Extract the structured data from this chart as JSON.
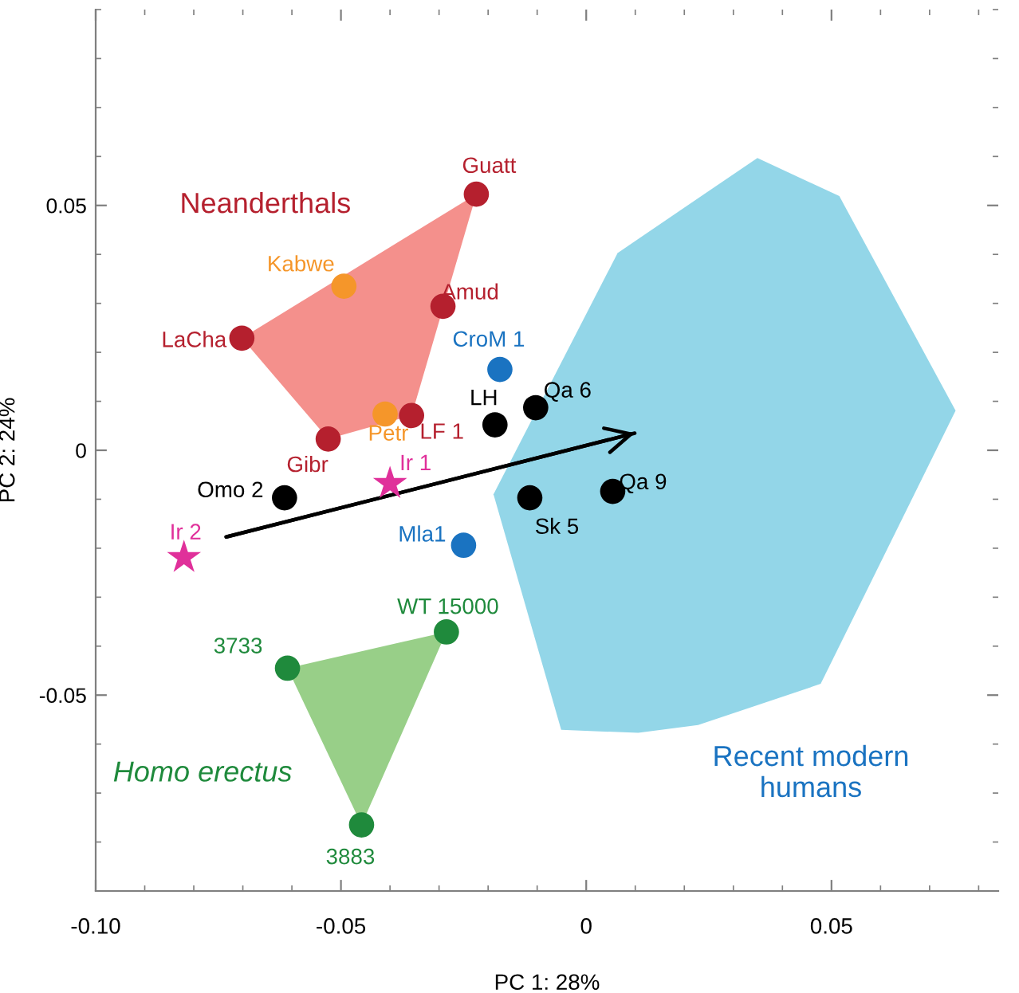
{
  "chart_data": {
    "type": "scatter",
    "xlabel": "PC 1: 28%",
    "ylabel": "PC 2: 24%",
    "xlim": [
      -0.1,
      0.084
    ],
    "ylim": [
      -0.09,
      0.09
    ],
    "xticks": [
      {
        "value": -0.1,
        "label": "-0.10"
      },
      {
        "value": -0.05,
        "label": "-0.05"
      },
      0,
      {
        "value": 0.05,
        "label": "0.05"
      }
    ],
    "yticks": [
      {
        "value": -0.05,
        "label": "-0.05"
      },
      0,
      {
        "value": 0.05,
        "label": "0.05"
      }
    ],
    "grid": false,
    "legend": false,
    "series": [
      {
        "type": "area",
        "color": "#f4908c",
        "x": [
          -0.0702,
          -0.0224,
          -0.0356,
          -0.0526
        ],
        "values": [
          0.0229,
          0.0523,
          0.0071,
          0.0023
        ]
      },
      {
        "type": "area",
        "color": "#98cf88",
        "x": [
          -0.0609,
          -0.0285,
          -0.0458
        ],
        "values": [
          -0.0445,
          -0.0371,
          -0.0765
        ]
      },
      {
        "type": "area",
        "color": "#93d6e8",
        "x": [
          0.0349,
          0.0516,
          0.0753,
          0.0478,
          0.0228,
          0.0106,
          -0.0051,
          -0.0189,
          0.0064
        ],
        "values": [
          0.0597,
          0.0519,
          0.0081,
          -0.0477,
          -0.0561,
          -0.0577,
          -0.0571,
          -0.009,
          0.0403
        ]
      },
      {
        "type": "line",
        "marker": "none",
        "color": "#000000",
        "x": [
          -0.0734,
          0.0099
        ],
        "values": [
          -0.0177,
          0.0035
        ]
      },
      {
        "marker": "circle",
        "color": "#b5202e",
        "x": [
          -0.0224,
          -0.0292,
          -0.0702,
          -0.0526,
          -0.0356
        ],
        "values": [
          0.0523,
          0.0294,
          0.0229,
          0.0023,
          0.0071
        ]
      },
      {
        "marker": "circle",
        "color": "#f5962a",
        "x": [
          -0.0494,
          -0.041
        ],
        "values": [
          0.0335,
          0.0074
        ]
      },
      {
        "marker": "circle",
        "color": "#1a73c1",
        "x": [
          -0.0176,
          -0.025
        ],
        "values": [
          0.0165,
          -0.0194
        ]
      },
      {
        "marker": "circle",
        "color": "#000000",
        "x": [
          -0.0186,
          -0.0103,
          -0.0615,
          -0.0115,
          0.0054
        ],
        "values": [
          0.0052,
          0.0087,
          -0.0097,
          -0.0097,
          -0.0084
        ]
      },
      {
        "marker": "star",
        "color": "#e0309a",
        "x": [
          -0.04,
          -0.082
        ],
        "values": [
          -0.0068,
          -0.0219
        ]
      },
      {
        "marker": "circle",
        "color": "#1f8a3c",
        "x": [
          -0.0285,
          -0.0609,
          -0.0458
        ],
        "values": [
          -0.0371,
          -0.0445,
          -0.0765
        ]
      }
    ],
    "annotations": [
      {
        "text": "Guatt",
        "x": -0.0224,
        "y": 0.0523
      },
      {
        "text": "Amud",
        "x": -0.0292,
        "y": 0.0294
      },
      {
        "text": "LaCha",
        "x": -0.0702,
        "y": 0.0229
      },
      {
        "text": "Gibr",
        "x": -0.0526,
        "y": 0.0023
      },
      {
        "text": "LF 1",
        "x": -0.0356,
        "y": 0.0071
      },
      {
        "text": "Kabwe",
        "x": -0.0494,
        "y": 0.0335
      },
      {
        "text": "Petr",
        "x": -0.041,
        "y": 0.0074
      },
      {
        "text": "CroM 1",
        "x": -0.0176,
        "y": 0.0165
      },
      {
        "text": "Mla1",
        "x": -0.025,
        "y": -0.0194
      },
      {
        "text": "LH",
        "x": -0.0186,
        "y": 0.0052
      },
      {
        "text": "Qa 6",
        "x": -0.0103,
        "y": 0.0087
      },
      {
        "text": "Omo 2",
        "x": -0.0615,
        "y": -0.0097
      },
      {
        "text": "Sk 5",
        "x": -0.0115,
        "y": -0.0097
      },
      {
        "text": "Qa 9",
        "x": 0.0054,
        "y": -0.0084
      },
      {
        "text": "Ir 1",
        "x": -0.04,
        "y": -0.0068
      },
      {
        "text": "Ir 2",
        "x": -0.082,
        "y": -0.0219
      },
      {
        "text": "WT 15000",
        "x": -0.0285,
        "y": -0.0371
      },
      {
        "text": "3733",
        "x": -0.0609,
        "y": -0.0445
      },
      {
        "text": "3883",
        "x": -0.0458,
        "y": -0.0765
      },
      "Neanderthals",
      "Homo erectus",
      "Recent modern\nhumans"
    ]
  }
}
